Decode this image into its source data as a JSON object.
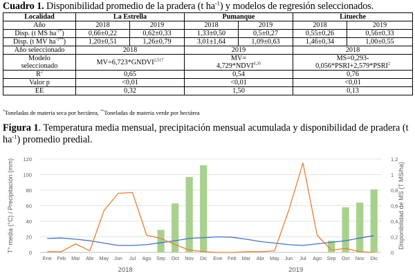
{
  "table": {
    "label": "Cuadro 1",
    "caption_sep": ".",
    "caption_pre": " Disponibilidad promedio de la pradera (t ha",
    "caption_sup": "-1",
    "caption_post": ") y modelos de regresión seleccionados.",
    "headers": {
      "localidad": "Localidad",
      "anio": "Año"
    },
    "locations": [
      "La Estrella",
      "Pumanque",
      "Litueche"
    ],
    "years": [
      "2018",
      "2019",
      "2018",
      "2019",
      "2018",
      "2019"
    ],
    "rows": [
      {
        "label_pre": "Disp. (t MS ha",
        "label_sup": "-1*",
        "label_post": ")",
        "values": [
          "0,66±0,22",
          "0,62±0,33",
          "1,33±0,50",
          "0,5±0,27",
          "0,55±0,26",
          "0,56±0,33"
        ]
      },
      {
        "label_pre": "Disp. (t MV ha",
        "label_sup": "-1**",
        "label_post": ")",
        "values": [
          "1,20±0,51",
          "1,26±0,79",
          "3,01±1,64",
          "1,09±0,63",
          "1,46±0,34",
          "1,00±0,55"
        ]
      }
    ],
    "selected_year": {
      "label": "Año seleccionado",
      "values": [
        "2018",
        "2019",
        "2018"
      ]
    },
    "model": {
      "label_l1": "Modelo",
      "label_l2": "seleccionado",
      "estrella_pre": "MV=6,723*GNDVI",
      "estrella_sup": "2,517",
      "pumanque_l1": "MV=",
      "pumanque_l2_pre": "4,729*NDVI",
      "pumanque_sup": "0,35",
      "litueche_l1": "MS=0,293-",
      "litueche_l2_pre": "0,056*PSRI+2,579*PSRI",
      "litueche_sup": "2"
    },
    "r2": {
      "label_pre": "R",
      "label_sup": "2",
      "values": [
        "0,65",
        "0,54",
        "0,76"
      ]
    },
    "pvalue": {
      "label": "Valor p",
      "values": [
        "<0,01",
        "<0,01",
        "<0,01"
      ]
    },
    "ee": {
      "label": "EE",
      "values": [
        "0,32",
        "1,50",
        "0,13"
      ]
    }
  },
  "footnote": {
    "sup1": "*",
    "text1": "Toneladas de materia seca por hectárea,",
    "sup2": "**",
    "text2": "Toneladas de materia verde por hectárea"
  },
  "figure": {
    "label": "Figura 1",
    "caption": ". Temperatura media mensual, precipitación mensual acumulada y disponibilidad de pradera (t ha",
    "caption_sup": "-1",
    "caption_post": ") promedio predial."
  },
  "chart_data": {
    "type": "bar+line",
    "categories": [
      "Ene",
      "Feb",
      "Mar",
      "Abr",
      "May",
      "Jun",
      "Jul",
      "Ago",
      "Sep",
      "Oct",
      "Nov",
      "Dic",
      "Ene",
      "Feb",
      "Mar",
      "Abr",
      "May",
      "Jun",
      "Jul",
      "Ago",
      "Sep",
      "Oct",
      "Nov",
      "Dic"
    ],
    "year_labels": [
      "2018",
      "2019"
    ],
    "left_axis": {
      "label": "T° media (°C) / Precipitación (mm)",
      "ticks": [
        "0",
        "20",
        "40",
        "60",
        "80",
        "100",
        "120"
      ],
      "ylim": [
        0,
        120
      ]
    },
    "right_axis": {
      "label": "Disponibilidad de MS (T MS/ha)",
      "ticks": [
        "0",
        "0,2",
        "0,4",
        "0,6",
        "0,8",
        "1",
        "1,2"
      ],
      "ylim": [
        0,
        1.2
      ]
    },
    "series": [
      {
        "name": "Disponibilidad de MS",
        "type": "bar",
        "axis": "right",
        "color": "#a9d18e",
        "values": [
          null,
          null,
          null,
          null,
          null,
          null,
          null,
          null,
          0.29,
          0.63,
          0.97,
          1.12,
          null,
          null,
          null,
          null,
          null,
          null,
          null,
          null,
          0.15,
          0.58,
          0.64,
          0.81
        ]
      },
      {
        "name": "Temperatura media",
        "type": "line",
        "axis": "left",
        "color": "#4472c4",
        "values": [
          18,
          18.5,
          17,
          15,
          12,
          9,
          9,
          10,
          12.5,
          15,
          18,
          19,
          20,
          19.5,
          17,
          14,
          12,
          10,
          9,
          11,
          13,
          15,
          18.5,
          21.5
        ]
      },
      {
        "name": "Precipitación",
        "type": "line",
        "axis": "left",
        "color": "#ed7d31",
        "values": [
          1,
          1,
          11,
          2,
          54,
          76,
          77,
          22,
          18,
          10,
          3,
          1,
          0,
          0,
          1,
          1,
          2,
          54,
          115,
          22,
          3,
          5,
          1,
          0
        ]
      }
    ]
  }
}
